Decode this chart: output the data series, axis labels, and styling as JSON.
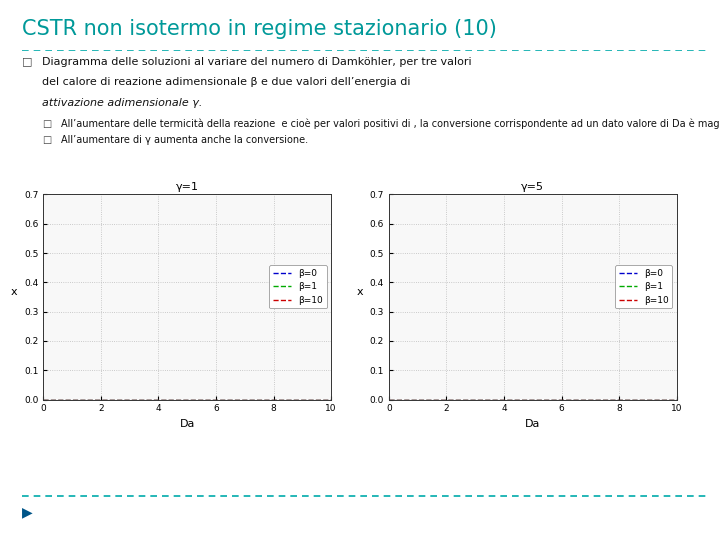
{
  "title": "CSTR non isotermo in regime stazionario (10)",
  "title_color": "#009999",
  "bullet_sym": "□",
  "bullet_text_line1": "Diagramma delle soluzioni al variare del numero di Damköhler, per tre valori",
  "bullet_text_line2": "del calore di reazione adimensionale β e due valori dell’energia di",
  "bullet_text_line3": "attivazione adimensionale γ.",
  "sub_bullet1": "All’aumentare delle termicità della reazione  e cioè per valori positivi di , la conversione corrispondente ad un dato valore di Da è maggiore.",
  "sub_bullet2": "All’aumentare di γ aumenta anche la conversione.",
  "plot1_title": "γ=1",
  "plot2_title": "γ=5",
  "xlabel": "Da",
  "ylabel": "x",
  "ylim": [
    0,
    0.7
  ],
  "yticks": [
    0,
    0.1,
    0.2,
    0.3,
    0.4,
    0.5,
    0.6,
    0.7
  ],
  "xlim": [
    0,
    10
  ],
  "xticks": [
    0,
    2,
    4,
    6,
    8,
    10
  ],
  "beta_values": [
    0,
    1,
    10
  ],
  "gamma_values": [
    1,
    5
  ],
  "line_colors": [
    "#0000CC",
    "#00AA00",
    "#CC0000"
  ],
  "legend_labels": [
    "β=0",
    "β=1",
    "β=10"
  ],
  "bg_color": "#FFFFFF",
  "dashed_bottom_color": "#00AAAA",
  "arrow_color": "#005588",
  "grid_color": "#BBBBBB",
  "plot_bg": "#F8F8F8"
}
